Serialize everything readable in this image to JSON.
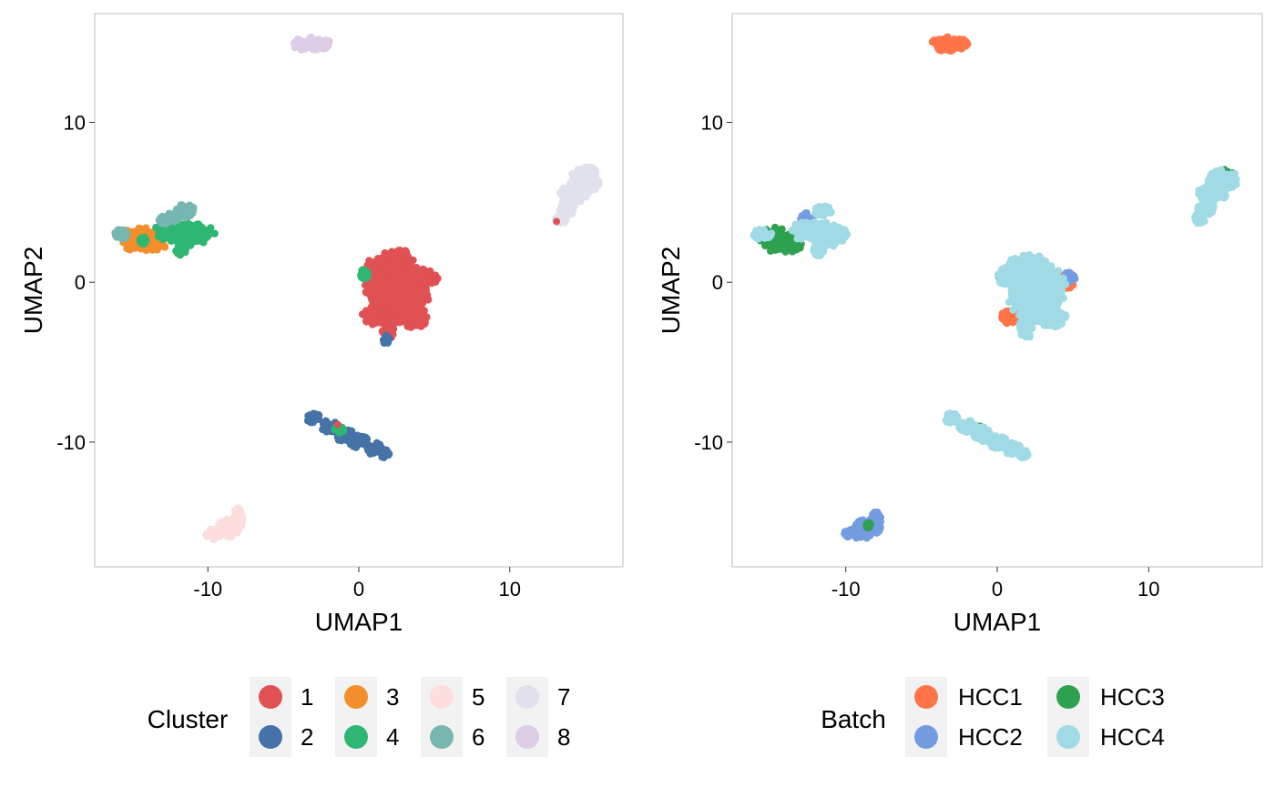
{
  "chart_data": [
    {
      "type": "scatter",
      "xlabel": "UMAP1",
      "ylabel": "UMAP2",
      "xlim": [
        -17.5,
        17.5
      ],
      "ylim": [
        -17.8,
        16.8
      ],
      "xticks": [
        -10,
        0,
        10
      ],
      "yticks": [
        -10,
        0,
        10
      ],
      "grid": false,
      "legend": {
        "title": "Cluster",
        "placement": "bottom",
        "entries": [
          {
            "label": "1",
            "color": "#E05154"
          },
          {
            "label": "2",
            "color": "#4573A8"
          },
          {
            "label": "3",
            "color": "#F28E2B"
          },
          {
            "label": "4",
            "color": "#2EB673"
          },
          {
            "label": "5",
            "color": "#FCDEDC"
          },
          {
            "label": "6",
            "color": "#76B7B2"
          },
          {
            "label": "7",
            "color": "#E1E1EE"
          },
          {
            "label": "8",
            "color": "#DDCDE6"
          }
        ]
      },
      "series": [
        {
          "name": "1",
          "color": "#E05154",
          "blobs": [
            {
              "x": 2.6,
              "y": -0.5,
              "rx": 2.1,
              "ry": 1.9
            },
            {
              "x": 2.0,
              "y": 1.0,
              "rx": 1.3,
              "ry": 0.8
            },
            {
              "x": 3.8,
              "y": 0.2,
              "rx": 1.3,
              "ry": 0.6
            },
            {
              "x": 3.6,
              "y": -2.2,
              "rx": 1.0,
              "ry": 0.6
            },
            {
              "x": 1.9,
              "y": -2.8,
              "rx": 0.4,
              "ry": 0.8
            },
            {
              "x": 1.0,
              "y": -2.1,
              "rx": 0.7,
              "ry": 0.5
            },
            {
              "x": 2.6,
              "y": 1.6,
              "rx": 0.8,
              "ry": 0.4
            }
          ]
        },
        {
          "name": "2",
          "color": "#4573A8",
          "blobs": [
            {
              "x": -3.0,
              "y": -8.5,
              "rx": 0.4,
              "ry": 0.3
            },
            {
              "x": -2.0,
              "y": -9.0,
              "rx": 0.5,
              "ry": 0.35
            },
            {
              "x": -1.0,
              "y": -9.5,
              "rx": 0.55,
              "ry": 0.4
            },
            {
              "x": 0.0,
              "y": -9.95,
              "rx": 0.55,
              "ry": 0.4
            },
            {
              "x": 1.0,
              "y": -10.4,
              "rx": 0.5,
              "ry": 0.35
            },
            {
              "x": 1.7,
              "y": -10.75,
              "rx": 0.3,
              "ry": 0.25
            },
            {
              "x": 1.8,
              "y": -3.6,
              "rx": 0.2,
              "ry": 0.25
            }
          ]
        },
        {
          "name": "3",
          "color": "#F28E2B",
          "blobs": [
            {
              "x": -14.8,
              "y": 2.7,
              "rx": 0.9,
              "ry": 0.7
            },
            {
              "x": -13.8,
              "y": 2.5,
              "rx": 1.0,
              "ry": 0.6
            },
            {
              "x": -14.2,
              "y": 3.0,
              "rx": 0.8,
              "ry": 0.4
            }
          ]
        },
        {
          "name": "4",
          "color": "#2EB673",
          "blobs": [
            {
              "x": -12.5,
              "y": 3.2,
              "rx": 1.0,
              "ry": 0.6
            },
            {
              "x": -11.2,
              "y": 3.0,
              "rx": 1.5,
              "ry": 0.7
            },
            {
              "x": -11.8,
              "y": 2.0,
              "rx": 0.3,
              "ry": 0.35
            },
            {
              "x": 0.4,
              "y": 0.5,
              "rx": 0.25,
              "ry": 0.3
            },
            {
              "x": -1.3,
              "y": -9.2,
              "rx": 0.3,
              "ry": 0.2
            },
            {
              "x": -14.3,
              "y": 2.6,
              "rx": 0.2,
              "ry": 0.2
            }
          ]
        },
        {
          "name": "5",
          "color": "#FCDEDC",
          "blobs": [
            {
              "x": -8.7,
              "y": -15.4,
              "rx": 0.9,
              "ry": 0.55
            },
            {
              "x": -9.6,
              "y": -15.75,
              "rx": 0.5,
              "ry": 0.3
            },
            {
              "x": -8.0,
              "y": -14.8,
              "rx": 0.3,
              "ry": 0.4
            },
            {
              "x": -8.0,
              "y": -14.4,
              "rx": 0.2,
              "ry": 0.25
            }
          ]
        },
        {
          "name": "6",
          "color": "#76B7B2",
          "blobs": [
            {
              "x": -11.5,
              "y": 4.45,
              "rx": 0.6,
              "ry": 0.4
            },
            {
              "x": -12.3,
              "y": 4.1,
              "rx": 0.4,
              "ry": 0.3
            },
            {
              "x": -15.8,
              "y": 3.0,
              "rx": 0.4,
              "ry": 0.3
            },
            {
              "x": -12.9,
              "y": 3.9,
              "rx": 0.3,
              "ry": 0.25
            }
          ]
        },
        {
          "name": "7",
          "color": "#E1E1EE",
          "blobs": [
            {
              "x": 14.9,
              "y": 6.3,
              "rx": 1.0,
              "ry": 0.75
            },
            {
              "x": 14.2,
              "y": 5.5,
              "rx": 0.9,
              "ry": 0.5
            },
            {
              "x": 13.8,
              "y": 4.6,
              "rx": 0.5,
              "ry": 0.4
            },
            {
              "x": 13.4,
              "y": 4.0,
              "rx": 0.35,
              "ry": 0.3
            },
            {
              "x": 15.2,
              "y": 6.9,
              "rx": 0.5,
              "ry": 0.3
            }
          ]
        },
        {
          "name": "8",
          "color": "#DDCDE6",
          "blobs": [
            {
              "x": -3.3,
              "y": 14.9,
              "rx": 1.0,
              "ry": 0.4
            },
            {
              "x": -2.4,
              "y": 14.9,
              "rx": 0.5,
              "ry": 0.3
            }
          ]
        }
      ],
      "annotation_points": [
        {
          "series": "1",
          "x": -1.4,
          "y": -8.9
        },
        {
          "series": "1",
          "x": 13.1,
          "y": 3.8
        }
      ]
    },
    {
      "type": "scatter",
      "xlabel": "UMAP1",
      "ylabel": "UMAP2",
      "xlim": [
        -17.5,
        17.5
      ],
      "ylim": [
        -17.8,
        16.8
      ],
      "xticks": [
        -10,
        0,
        10
      ],
      "yticks": [
        -10,
        0,
        10
      ],
      "grid": false,
      "legend": {
        "title": "Batch",
        "placement": "bottom",
        "entries": [
          {
            "label": "HCC1",
            "color": "#FF7548"
          },
          {
            "label": "HCC2",
            "color": "#739CE1"
          },
          {
            "label": "HCC3",
            "color": "#2EA151"
          },
          {
            "label": "HCC4",
            "color": "#A0DAE5"
          }
        ]
      },
      "series": [
        {
          "name": "HCC1",
          "color": "#FF7548",
          "blobs": [
            {
              "x": -3.3,
              "y": 14.9,
              "rx": 1.0,
              "ry": 0.4
            },
            {
              "x": -2.4,
              "y": 14.9,
              "rx": 0.5,
              "ry": 0.3
            },
            {
              "x": 0.8,
              "y": -2.2,
              "rx": 0.5,
              "ry": 0.4
            },
            {
              "x": 4.4,
              "y": 0.0,
              "rx": 0.6,
              "ry": 0.4
            }
          ]
        },
        {
          "name": "HCC2",
          "color": "#739CE1",
          "blobs": [
            {
              "x": -8.7,
              "y": -15.4,
              "rx": 0.9,
              "ry": 0.55
            },
            {
              "x": -9.6,
              "y": -15.75,
              "rx": 0.5,
              "ry": 0.3
            },
            {
              "x": -8.0,
              "y": -14.8,
              "rx": 0.3,
              "ry": 0.4
            },
            {
              "x": 4.7,
              "y": 0.3,
              "rx": 0.4,
              "ry": 0.3
            },
            {
              "x": -12.6,
              "y": 4.0,
              "rx": 0.4,
              "ry": 0.3
            }
          ]
        },
        {
          "name": "HCC3",
          "color": "#2EA151",
          "blobs": [
            {
              "x": -14.8,
              "y": 2.7,
              "rx": 0.9,
              "ry": 0.7
            },
            {
              "x": -13.8,
              "y": 2.5,
              "rx": 0.9,
              "ry": 0.55
            },
            {
              "x": 0.4,
              "y": 0.3,
              "rx": 0.3,
              "ry": 0.4
            },
            {
              "x": -1.3,
              "y": -9.2,
              "rx": 0.3,
              "ry": 0.2
            },
            {
              "x": 15.0,
              "y": 6.6,
              "rx": 0.6,
              "ry": 0.4
            },
            {
              "x": -8.5,
              "y": -15.2,
              "rx": 0.15,
              "ry": 0.15
            }
          ]
        },
        {
          "name": "HCC4",
          "color": "#A0DAE5",
          "blobs": [
            {
              "x": 2.6,
              "y": -0.5,
              "rx": 1.9,
              "ry": 1.8
            },
            {
              "x": 2.0,
              "y": 1.0,
              "rx": 1.2,
              "ry": 0.7
            },
            {
              "x": 3.6,
              "y": -2.2,
              "rx": 0.9,
              "ry": 0.55
            },
            {
              "x": 1.9,
              "y": -2.8,
              "rx": 0.4,
              "ry": 0.8
            },
            {
              "x": 0.5,
              "y": 0.4,
              "rx": 0.5,
              "ry": 0.5
            },
            {
              "x": -12.5,
              "y": 3.2,
              "rx": 1.0,
              "ry": 0.6
            },
            {
              "x": -11.2,
              "y": 3.0,
              "rx": 1.5,
              "ry": 0.7
            },
            {
              "x": -11.5,
              "y": 4.45,
              "rx": 0.5,
              "ry": 0.35
            },
            {
              "x": -11.8,
              "y": 2.0,
              "rx": 0.3,
              "ry": 0.35
            },
            {
              "x": -15.5,
              "y": 3.0,
              "rx": 0.6,
              "ry": 0.3
            },
            {
              "x": -3.0,
              "y": -8.5,
              "rx": 0.4,
              "ry": 0.3
            },
            {
              "x": -2.0,
              "y": -9.0,
              "rx": 0.5,
              "ry": 0.35
            },
            {
              "x": -1.0,
              "y": -9.5,
              "rx": 0.55,
              "ry": 0.4
            },
            {
              "x": 0.0,
              "y": -9.95,
              "rx": 0.55,
              "ry": 0.4
            },
            {
              "x": 1.0,
              "y": -10.4,
              "rx": 0.5,
              "ry": 0.35
            },
            {
              "x": 1.7,
              "y": -10.75,
              "rx": 0.3,
              "ry": 0.25
            },
            {
              "x": 14.9,
              "y": 6.3,
              "rx": 0.95,
              "ry": 0.7
            },
            {
              "x": 14.2,
              "y": 5.5,
              "rx": 0.9,
              "ry": 0.5
            },
            {
              "x": 13.8,
              "y": 4.6,
              "rx": 0.5,
              "ry": 0.4
            },
            {
              "x": 13.4,
              "y": 4.0,
              "rx": 0.35,
              "ry": 0.3
            }
          ]
        }
      ],
      "annotation_points": []
    }
  ]
}
